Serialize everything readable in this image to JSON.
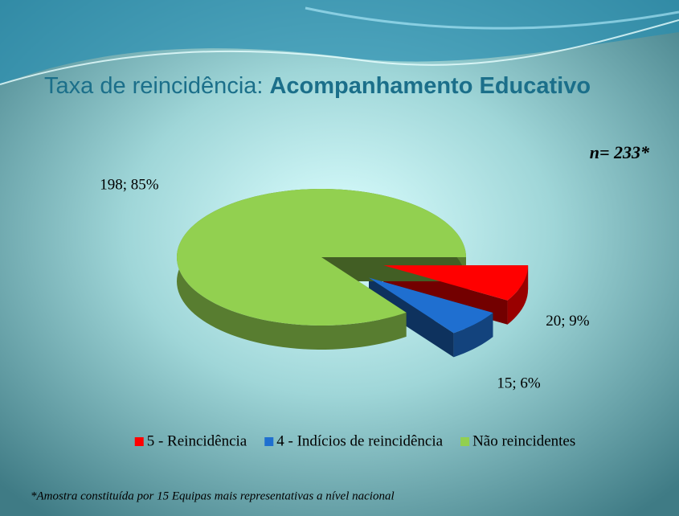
{
  "chart_data": {
    "type": "pie3d",
    "title_parts": [
      "Taxa de reincidência:",
      "Acompanhamento Educativo"
    ],
    "annotations": [
      "n= 233*",
      "*Amostra constituída por 15 Equipas mais representativas a nível nacional"
    ],
    "categories": [
      "5 - Reincidência",
      "4 - Indícios de reincidência",
      "Não reincidentes"
    ],
    "values": [
      20,
      15,
      198
    ],
    "value_labels": [
      "20; 9%",
      "15; 6%",
      "198; 85%"
    ],
    "colors": [
      "#ff0000",
      "#1f6fd0",
      "#92d050"
    ],
    "legend": "bottom"
  }
}
